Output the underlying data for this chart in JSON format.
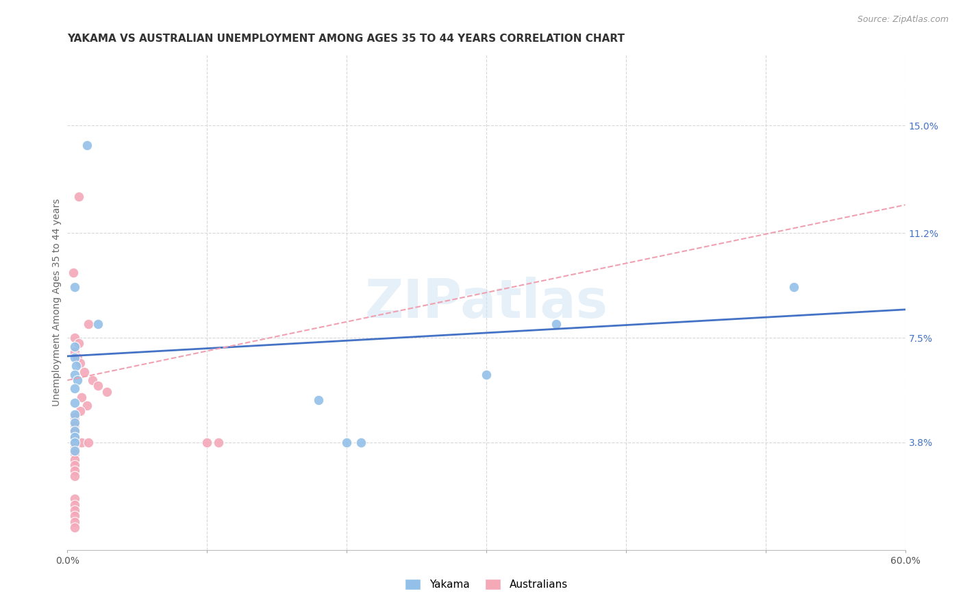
{
  "title": "YAKAMA VS AUSTRALIAN UNEMPLOYMENT AMONG AGES 35 TO 44 YEARS CORRELATION CHART",
  "source": "Source: ZipAtlas.com",
  "ylabel": "Unemployment Among Ages 35 to 44 years",
  "xlim": [
    0.0,
    0.6
  ],
  "ylim": [
    0.0,
    0.175
  ],
  "xticks": [
    0.0,
    0.1,
    0.2,
    0.3,
    0.4,
    0.5,
    0.6
  ],
  "xticklabels": [
    "0.0%",
    "",
    "",
    "",
    "",
    "",
    "60.0%"
  ],
  "yticks_right": [
    0.038,
    0.075,
    0.112,
    0.15
  ],
  "ytick_labels_right": [
    "3.8%",
    "7.5%",
    "11.2%",
    "15.0%"
  ],
  "watermark": "ZIPatlas",
  "background_color": "#ffffff",
  "grid_color": "#d8d8d8",
  "yakama_color": "#92c0e8",
  "australian_color": "#f4a8b8",
  "yakama_line_color": "#4472c4",
  "australian_line_color": "#f0a0b0",
  "title_fontsize": 11,
  "axis_label_fontsize": 10,
  "tick_fontsize": 10,
  "legend_fontsize": 12,
  "yakama_scatter": [
    [
      0.014,
      0.143
    ],
    [
      0.005,
      0.093
    ],
    [
      0.022,
      0.08
    ],
    [
      0.005,
      0.072
    ],
    [
      0.005,
      0.068
    ],
    [
      0.006,
      0.065
    ],
    [
      0.005,
      0.062
    ],
    [
      0.007,
      0.06
    ],
    [
      0.005,
      0.057
    ],
    [
      0.005,
      0.052
    ],
    [
      0.005,
      0.048
    ],
    [
      0.005,
      0.045
    ],
    [
      0.005,
      0.042
    ],
    [
      0.005,
      0.04
    ],
    [
      0.005,
      0.038
    ],
    [
      0.005,
      0.035
    ],
    [
      0.18,
      0.053
    ],
    [
      0.21,
      0.038
    ],
    [
      0.35,
      0.08
    ],
    [
      0.52,
      0.093
    ],
    [
      0.3,
      0.062
    ],
    [
      0.2,
      0.038
    ]
  ],
  "australian_scatter": [
    [
      0.008,
      0.125
    ],
    [
      0.004,
      0.098
    ],
    [
      0.015,
      0.08
    ],
    [
      0.005,
      0.075
    ],
    [
      0.008,
      0.073
    ],
    [
      0.005,
      0.07
    ],
    [
      0.007,
      0.068
    ],
    [
      0.009,
      0.066
    ],
    [
      0.012,
      0.063
    ],
    [
      0.018,
      0.06
    ],
    [
      0.022,
      0.058
    ],
    [
      0.028,
      0.056
    ],
    [
      0.01,
      0.054
    ],
    [
      0.014,
      0.051
    ],
    [
      0.009,
      0.049
    ],
    [
      0.005,
      0.047
    ],
    [
      0.005,
      0.044
    ],
    [
      0.005,
      0.042
    ],
    [
      0.005,
      0.04
    ],
    [
      0.005,
      0.038
    ],
    [
      0.005,
      0.036
    ],
    [
      0.005,
      0.034
    ],
    [
      0.005,
      0.032
    ],
    [
      0.005,
      0.03
    ],
    [
      0.005,
      0.028
    ],
    [
      0.005,
      0.026
    ],
    [
      0.01,
      0.038
    ],
    [
      0.015,
      0.038
    ],
    [
      0.1,
      0.038
    ],
    [
      0.108,
      0.038
    ],
    [
      0.005,
      0.018
    ],
    [
      0.005,
      0.016
    ],
    [
      0.005,
      0.014
    ],
    [
      0.005,
      0.012
    ],
    [
      0.005,
      0.01
    ],
    [
      0.005,
      0.008
    ]
  ],
  "yakama_line_x": [
    0.0,
    0.6
  ],
  "yakama_line_y": [
    0.0685,
    0.085
  ],
  "australian_line_x": [
    0.0,
    0.6
  ],
  "australian_line_y": [
    0.06,
    0.122
  ]
}
